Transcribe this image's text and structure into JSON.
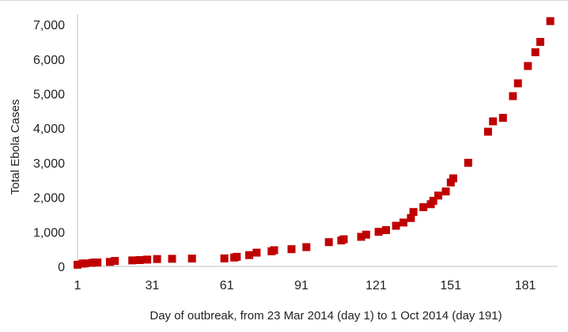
{
  "chart_data": {
    "type": "scatter",
    "title": "",
    "xlabel": "Day of outbreak, from 23 Mar 2014 (day 1) to 1 Oct 2014 (day 191)",
    "ylabel": "Total Ebola Cases",
    "xlim": [
      1,
      194
    ],
    "ylim": [
      0,
      7300
    ],
    "x_ticks": [
      1,
      31,
      61,
      91,
      121,
      151,
      181
    ],
    "x_tick_labels": [
      "1",
      "31",
      "61",
      "91",
      "121",
      "151",
      "181"
    ],
    "y_ticks": [
      0,
      1000,
      2000,
      3000,
      4000,
      5000,
      6000,
      7000
    ],
    "y_tick_labels": [
      "0",
      "1,000",
      "2,000",
      "3,000",
      "4,000",
      "5,000",
      "6,000",
      "7,000"
    ],
    "grid": false,
    "marker": "square",
    "series": [
      {
        "color": "#c00000",
        "points": [
          {
            "x": 1,
            "y": 49
          },
          {
            "x": 3,
            "y": 80
          },
          {
            "x": 4,
            "y": 86
          },
          {
            "x": 7,
            "y": 103
          },
          {
            "x": 8,
            "y": 112
          },
          {
            "x": 9,
            "y": 114
          },
          {
            "x": 14,
            "y": 130
          },
          {
            "x": 16,
            "y": 157
          },
          {
            "x": 23,
            "y": 175
          },
          {
            "x": 26,
            "y": 183
          },
          {
            "x": 29,
            "y": 197
          },
          {
            "x": 33,
            "y": 212
          },
          {
            "x": 39,
            "y": 220
          },
          {
            "x": 47,
            "y": 226
          },
          {
            "x": 60,
            "y": 232
          },
          {
            "x": 64,
            "y": 256
          },
          {
            "x": 65,
            "y": 277
          },
          {
            "x": 70,
            "y": 328
          },
          {
            "x": 73,
            "y": 398
          },
          {
            "x": 79,
            "y": 438
          },
          {
            "x": 80,
            "y": 468
          },
          {
            "x": 87,
            "y": 500
          },
          {
            "x": 93,
            "y": 558
          },
          {
            "x": 102,
            "y": 703
          },
          {
            "x": 107,
            "y": 750
          },
          {
            "x": 108,
            "y": 786
          },
          {
            "x": 115,
            "y": 855
          },
          {
            "x": 117,
            "y": 920
          },
          {
            "x": 122,
            "y": 1000
          },
          {
            "x": 125,
            "y": 1051
          },
          {
            "x": 129,
            "y": 1176
          },
          {
            "x": 132,
            "y": 1270
          },
          {
            "x": 135,
            "y": 1400
          },
          {
            "x": 136,
            "y": 1575
          },
          {
            "x": 140,
            "y": 1715
          },
          {
            "x": 143,
            "y": 1800
          },
          {
            "x": 144,
            "y": 1900
          },
          {
            "x": 146,
            "y": 2050
          },
          {
            "x": 149,
            "y": 2170
          },
          {
            "x": 151,
            "y": 2430
          },
          {
            "x": 152,
            "y": 2550
          },
          {
            "x": 158,
            "y": 3000
          },
          {
            "x": 166,
            "y": 3900
          },
          {
            "x": 168,
            "y": 4200
          },
          {
            "x": 172,
            "y": 4300
          },
          {
            "x": 176,
            "y": 4930
          },
          {
            "x": 178,
            "y": 5300
          },
          {
            "x": 182,
            "y": 5800
          },
          {
            "x": 185,
            "y": 6200
          },
          {
            "x": 187,
            "y": 6500
          },
          {
            "x": 191,
            "y": 7100
          }
        ]
      }
    ]
  }
}
